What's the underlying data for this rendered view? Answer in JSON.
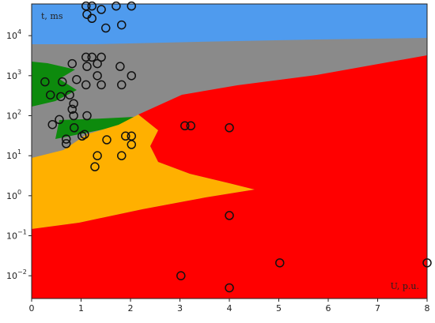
{
  "chart_data": {
    "type": "scatter",
    "annotations": [
      "t, ms",
      "U, p.u."
    ],
    "x": [
      1.1,
      1.22,
      1.41,
      1.71,
      2.02,
      1.12,
      1.22,
      1.5,
      1.82,
      0.82,
      1.1,
      1.22,
      1.41,
      1.12,
      1.33,
      1.79,
      0.27,
      0.62,
      0.91,
      1.33,
      2.02,
      1.1,
      1.41,
      1.82,
      0.38,
      0.59,
      0.77,
      0.85,
      0.82,
      1.12,
      0.85,
      0.56,
      0.42,
      0.86,
      3.1,
      3.22,
      4.0,
      0.7,
      0.7,
      1.02,
      1.07,
      1.9,
      2.02,
      1.52,
      2.02,
      1.33,
      1.82,
      1.28,
      4.0,
      5.02,
      8.0,
      3.02,
      4.0
    ],
    "values": [
      55000,
      55000,
      45000,
      55000,
      55000,
      34000,
      27000,
      15500,
      18500,
      2000,
      2900,
      2900,
      2900,
      1700,
      2000,
      1700,
      700,
      700,
      800,
      1000,
      1000,
      590,
      590,
      590,
      330,
      300,
      330,
      200,
      145,
      100,
      100,
      80,
      60,
      50,
      56,
      56,
      50,
      26,
      20,
      31,
      34,
      31,
      31,
      25,
      19,
      10,
      10,
      5.3,
      0.32,
      0.021,
      0.021,
      0.01,
      0.005
    ],
    "marker_color": "#111111",
    "xlim": [
      0,
      8
    ],
    "ylim": [
      0.0027,
      62000
    ],
    "log_y": true,
    "xticks": [
      0,
      1,
      2,
      3,
      4,
      5,
      6,
      7,
      8
    ],
    "yticks": [
      {
        "value": 0.01,
        "label": "10",
        "exponent": "−2"
      },
      {
        "value": 0.1,
        "label": "10",
        "exponent": "−1"
      },
      {
        "value": 1,
        "label": "10",
        "exponent": "0"
      },
      {
        "value": 10,
        "label": "10",
        "exponent": "1"
      },
      {
        "value": 100,
        "label": "10",
        "exponent": "2"
      },
      {
        "value": 1000,
        "label": "10",
        "exponent": "3"
      },
      {
        "value": 10000,
        "label": "10",
        "exponent": "4"
      }
    ]
  }
}
